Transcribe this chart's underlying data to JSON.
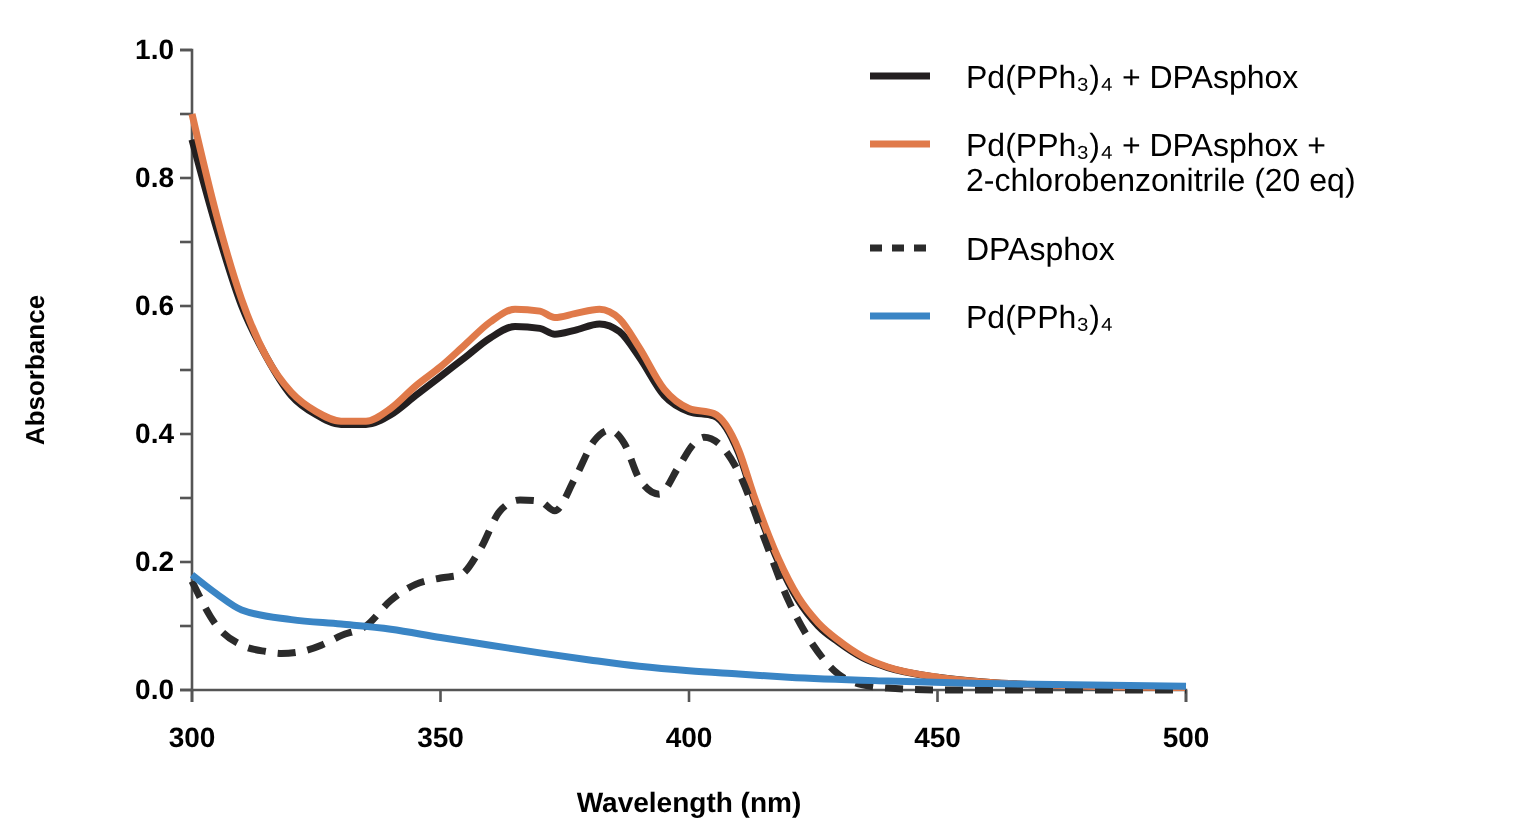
{
  "chart_data": {
    "type": "line",
    "xlabel": "Wavelength (nm)",
    "ylabel": "Absorbance",
    "xlim": [
      300,
      500
    ],
    "xticks": [
      300,
      350,
      400,
      450,
      500
    ],
    "ylim": [
      0,
      1
    ],
    "yticks": [
      {
        "value": 0,
        "label": "0.0"
      },
      {
        "value": 0.1,
        "label": null
      },
      {
        "value": 0.2,
        "label": "0.2"
      },
      {
        "value": 0.3,
        "label": null
      },
      {
        "value": 0.4,
        "label": "0.4"
      },
      {
        "value": 0.5,
        "label": null
      },
      {
        "value": 0.6,
        "label": "0.6"
      },
      {
        "value": 0.7,
        "label": null
      },
      {
        "value": 0.8,
        "label": "0.8"
      },
      {
        "value": 0.9,
        "label": null
      },
      {
        "value": 1,
        "label": "1.0"
      }
    ],
    "grid": false,
    "legend": "top right",
    "marker": "none",
    "series": [
      {
        "name": "Pd(PPh₃)₄ + DPAsphox",
        "color": "#231f20",
        "line_style": "solid",
        "x": [
          300,
          305,
          310,
          315,
          320,
          325,
          330,
          335,
          340,
          345,
          350,
          355,
          360,
          365,
          370,
          373,
          377,
          382,
          386,
          390,
          395,
          400,
          405,
          410,
          413,
          418,
          422,
          426,
          430,
          435,
          440,
          450,
          460,
          480,
          500
        ],
        "values": [
          0.86,
          0.72,
          0.6,
          0.52,
          0.46,
          0.43,
          0.415,
          0.415,
          0.43,
          0.46,
          0.49,
          0.52,
          0.55,
          0.568,
          0.565,
          0.556,
          0.562,
          0.572,
          0.56,
          0.52,
          0.46,
          0.435,
          0.428,
          0.37,
          0.3,
          0.2,
          0.14,
          0.1,
          0.075,
          0.05,
          0.035,
          0.02,
          0.012,
          0.006,
          0.004
        ]
      },
      {
        "name": "Pd(PPh₃)₄ + DPAsphox + 2-chlorobenzonitrile (20 eq)",
        "color": "#e07a4a",
        "line_style": "solid",
        "x": [
          300,
          305,
          310,
          315,
          320,
          325,
          330,
          335,
          340,
          345,
          350,
          355,
          360,
          365,
          370,
          373,
          377,
          382,
          386,
          390,
          395,
          400,
          405,
          410,
          413,
          418,
          422,
          426,
          430,
          435,
          440,
          450,
          460,
          480,
          500
        ],
        "values": [
          0.9,
          0.74,
          0.61,
          0.52,
          0.465,
          0.435,
          0.42,
          0.42,
          0.44,
          0.475,
          0.505,
          0.54,
          0.575,
          0.595,
          0.592,
          0.582,
          0.588,
          0.595,
          0.58,
          0.535,
          0.47,
          0.44,
          0.432,
          0.375,
          0.305,
          0.205,
          0.145,
          0.105,
          0.078,
          0.052,
          0.036,
          0.02,
          0.012,
          0.006,
          0.004
        ]
      },
      {
        "name": "DPAsphox",
        "color": "#2b2b2b",
        "line_style": "dashed",
        "x": [
          300,
          305,
          310,
          315,
          318,
          322,
          326,
          330,
          335,
          340,
          345,
          350,
          354,
          358,
          362,
          366,
          370,
          373,
          377,
          381,
          384,
          387,
          390,
          394,
          398,
          401,
          403,
          406,
          410,
          415,
          420,
          425,
          430,
          435,
          440,
          450,
          500
        ],
        "values": [
          0.17,
          0.1,
          0.07,
          0.06,
          0.057,
          0.06,
          0.07,
          0.085,
          0.1,
          0.14,
          0.165,
          0.175,
          0.18,
          0.22,
          0.28,
          0.297,
          0.295,
          0.28,
          0.33,
          0.39,
          0.406,
          0.385,
          0.33,
          0.306,
          0.35,
          0.385,
          0.395,
          0.385,
          0.34,
          0.24,
          0.14,
          0.07,
          0.025,
          0.008,
          0.003,
          0,
          0
        ]
      },
      {
        "name": "Pd(PPh₃)₄",
        "color": "#3a85c5",
        "line_style": "solid",
        "x": [
          300,
          305,
          310,
          320,
          330,
          340,
          350,
          360,
          370,
          380,
          390,
          400,
          410,
          420,
          440,
          460,
          500
        ],
        "values": [
          0.18,
          0.15,
          0.125,
          0.11,
          0.103,
          0.095,
          0.082,
          0.07,
          0.058,
          0.047,
          0.037,
          0.03,
          0.025,
          0.02,
          0.014,
          0.01,
          0.006
        ]
      }
    ]
  }
}
